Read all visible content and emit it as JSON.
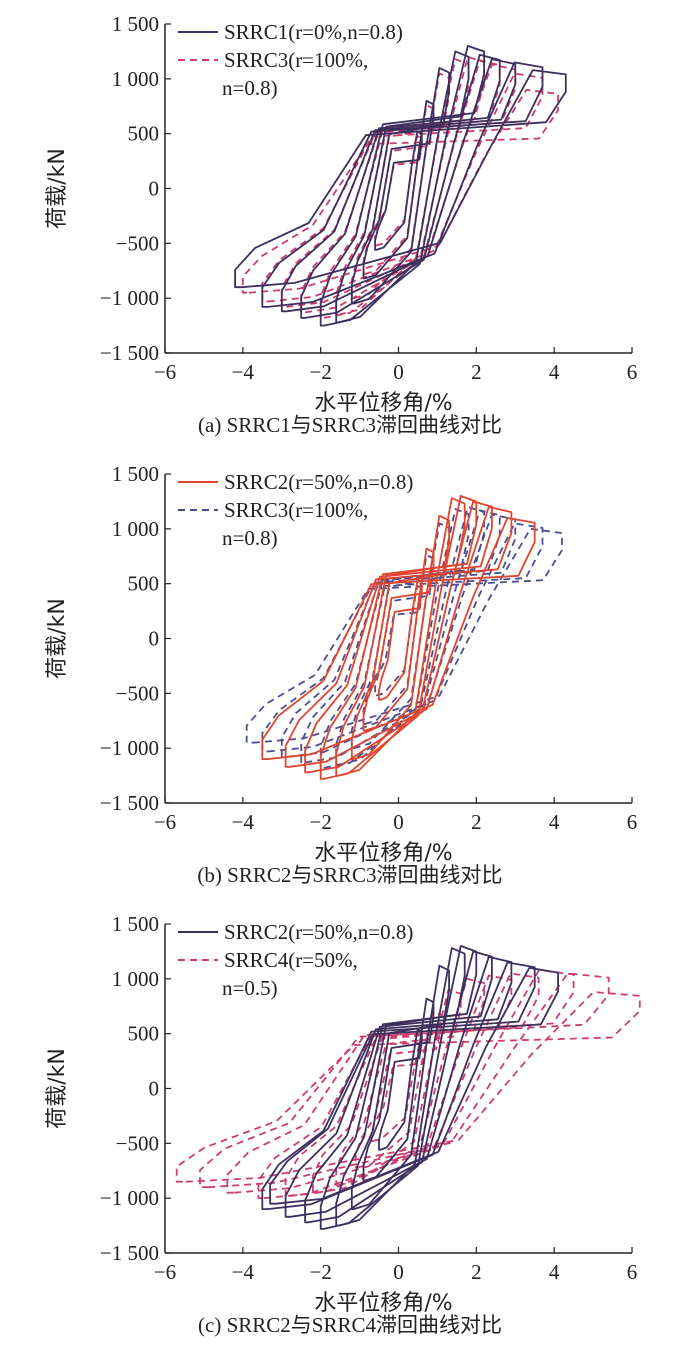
{
  "chart_data": [
    {
      "type": "line",
      "caption": "(a) SRRC1与SRRC3滞回曲线对比",
      "xlabel": "水平位移角/%",
      "ylabel": "荷载/kN",
      "xlim": [
        -6,
        6
      ],
      "ylim": [
        -1500,
        1500
      ],
      "xticks": [
        "−6",
        "−4",
        "−2",
        "0",
        "2",
        "4",
        "6"
      ],
      "yticks": [
        "1 500",
        "1 000",
        "500",
        "0",
        "−500",
        "−1 000",
        "−1 500"
      ],
      "series": [
        {
          "name": "SRRC1",
          "legend_lines": [
            "SRRC1(r=0%,n=0.8)"
          ],
          "color": "#3d2f5e",
          "dash": "solid",
          "loop_peaks": [
            {
              "pos": [
                0.6,
                520
              ],
              "neg": [
                -0.6,
                -560
              ]
            },
            {
              "pos": [
                0.9,
                800
              ],
              "neg": [
                -0.9,
                -820
              ]
            },
            {
              "pos": [
                1.3,
                1100
              ],
              "neg": [
                -1.2,
                -1050
              ]
            },
            {
              "pos": [
                1.8,
                1250
              ],
              "neg": [
                -1.6,
                -1220
              ]
            },
            {
              "pos": [
                2.2,
                1300
              ],
              "neg": [
                -2.0,
                -1250
              ]
            },
            {
              "pos": [
                2.6,
                1220
              ],
              "neg": [
                -2.5,
                -1180
              ]
            },
            {
              "pos": [
                3.0,
                1180
              ],
              "neg": [
                -3.0,
                -1120
              ]
            },
            {
              "pos": [
                3.7,
                1150
              ],
              "neg": [
                -3.5,
                -1080
              ]
            },
            {
              "pos": [
                4.3,
                1080
              ],
              "neg": [
                -4.2,
                -900
              ]
            }
          ]
        },
        {
          "name": "SRRC3",
          "legend_lines": [
            "SRRC3(r=100%,",
            "n=0.8)"
          ],
          "color": "#cc3d6e",
          "dash": "dashed",
          "loop_peaks": [
            {
              "pos": [
                0.6,
                480
              ],
              "neg": [
                -0.6,
                -520
              ]
            },
            {
              "pos": [
                0.9,
                760
              ],
              "neg": [
                -0.9,
                -780
              ]
            },
            {
              "pos": [
                1.3,
                1050
              ],
              "neg": [
                -1.2,
                -1000
              ]
            },
            {
              "pos": [
                1.8,
                1180
              ],
              "neg": [
                -1.6,
                -1150
              ]
            },
            {
              "pos": [
                2.2,
                1200
              ],
              "neg": [
                -2.0,
                -1180
              ]
            },
            {
              "pos": [
                2.6,
                1170
              ],
              "neg": [
                -2.5,
                -1130
              ]
            },
            {
              "pos": [
                3.0,
                1130
              ],
              "neg": [
                -3.0,
                -1080
              ]
            },
            {
              "pos": [
                3.7,
                1050
              ],
              "neg": [
                -3.5,
                -1030
              ]
            },
            {
              "pos": [
                4.1,
                900
              ],
              "neg": [
                -4.0,
                -950
              ]
            }
          ]
        }
      ]
    },
    {
      "type": "line",
      "caption": "(b) SRRC2与SRRC3滞回曲线对比",
      "xlabel": "水平位移角/%",
      "ylabel": "荷载/kN",
      "xlim": [
        -6,
        6
      ],
      "ylim": [
        -1500,
        1500
      ],
      "xticks": [
        "−6",
        "−4",
        "−2",
        "0",
        "2",
        "4",
        "6"
      ],
      "yticks": [
        "1 500",
        "1 000",
        "500",
        "0",
        "−500",
        "−1 000",
        "−1 500"
      ],
      "series": [
        {
          "name": "SRRC2",
          "legend_lines": [
            "SRRC2(r=50%,n=0.8)"
          ],
          "color": "#e0452f",
          "dash": "solid",
          "loop_peaks": [
            {
              "pos": [
                0.6,
                540
              ],
              "neg": [
                -0.5,
                -560
              ]
            },
            {
              "pos": [
                0.9,
                820
              ],
              "neg": [
                -0.9,
                -840
              ]
            },
            {
              "pos": [
                1.3,
                1120
              ],
              "neg": [
                -1.2,
                -1100
              ]
            },
            {
              "pos": [
                1.7,
                1280
              ],
              "neg": [
                -1.6,
                -1250
              ]
            },
            {
              "pos": [
                2.0,
                1300
              ],
              "neg": [
                -2.0,
                -1280
              ]
            },
            {
              "pos": [
                2.4,
                1250
              ],
              "neg": [
                -2.4,
                -1220
              ]
            },
            {
              "pos": [
                2.9,
                1200
              ],
              "neg": [
                -2.9,
                -1170
              ]
            },
            {
              "pos": [
                3.5,
                1100
              ],
              "neg": [
                -3.5,
                -1100
              ]
            }
          ]
        },
        {
          "name": "SRRC3",
          "legend_lines": [
            "SRRC3(r=100%,",
            "n=0.8)"
          ],
          "color": "#4b4f8e",
          "dash": "dashed",
          "loop_peaks": [
            {
              "pos": [
                0.6,
                480
              ],
              "neg": [
                -0.6,
                -520
              ]
            },
            {
              "pos": [
                0.9,
                760
              ],
              "neg": [
                -0.9,
                -780
              ]
            },
            {
              "pos": [
                1.3,
                1050
              ],
              "neg": [
                -1.2,
                -1000
              ]
            },
            {
              "pos": [
                1.8,
                1180
              ],
              "neg": [
                -1.6,
                -1150
              ]
            },
            {
              "pos": [
                2.2,
                1200
              ],
              "neg": [
                -2.0,
                -1180
              ]
            },
            {
              "pos": [
                2.6,
                1170
              ],
              "neg": [
                -2.5,
                -1130
              ]
            },
            {
              "pos": [
                3.0,
                1130
              ],
              "neg": [
                -3.0,
                -1080
              ]
            },
            {
              "pos": [
                3.7,
                1050
              ],
              "neg": [
                -3.5,
                -1030
              ]
            },
            {
              "pos": [
                4.2,
                1000
              ],
              "neg": [
                -3.9,
                -950
              ]
            }
          ]
        }
      ]
    },
    {
      "type": "line",
      "caption": "(c) SRRC2与SRRC4滞回曲线对比",
      "xlabel": "水平位移角/%",
      "ylabel": "荷载/kN",
      "xlim": [
        -6,
        6
      ],
      "ylim": [
        -1500,
        1500
      ],
      "xticks": [
        "−6",
        "−4",
        "−2",
        "0",
        "2",
        "4",
        "6"
      ],
      "yticks": [
        "1 500",
        "1 000",
        "500",
        "0",
        "−500",
        "−1 000",
        "−1 500"
      ],
      "series": [
        {
          "name": "SRRC2",
          "legend_lines": [
            "SRRC2(r=50%,n=0.8)"
          ],
          "color": "#3d2f5e",
          "dash": "solid",
          "loop_peaks": [
            {
              "pos": [
                0.6,
                540
              ],
              "neg": [
                -0.5,
                -560
              ]
            },
            {
              "pos": [
                0.9,
                820
              ],
              "neg": [
                -0.9,
                -840
              ]
            },
            {
              "pos": [
                1.3,
                1120
              ],
              "neg": [
                -1.2,
                -1100
              ]
            },
            {
              "pos": [
                1.7,
                1280
              ],
              "neg": [
                -1.6,
                -1250
              ]
            },
            {
              "pos": [
                2.0,
                1300
              ],
              "neg": [
                -2.0,
                -1280
              ]
            },
            {
              "pos": [
                2.4,
                1250
              ],
              "neg": [
                -2.4,
                -1220
              ]
            },
            {
              "pos": [
                2.9,
                1200
              ],
              "neg": [
                -2.9,
                -1170
              ]
            },
            {
              "pos": [
                3.5,
                1150
              ],
              "neg": [
                -3.5,
                -1100
              ]
            },
            {
              "pos": [
                4.1,
                1100
              ],
              "neg": [
                -3.3,
                -1050
              ]
            }
          ]
        },
        {
          "name": "SRRC4",
          "legend_lines": [
            "SRRC4(r=50%,",
            "n=0.5)"
          ],
          "color": "#cc3d6e",
          "dash": "dashed",
          "loop_peaks": [
            {
              "pos": [
                0.7,
                450
              ],
              "neg": [
                -0.7,
                -480
              ]
            },
            {
              "pos": [
                1.1,
                700
              ],
              "neg": [
                -1.1,
                -720
              ]
            },
            {
              "pos": [
                1.6,
                900
              ],
              "neg": [
                -1.6,
                -880
              ]
            },
            {
              "pos": [
                2.2,
                1000
              ],
              "neg": [
                -2.2,
                -950
              ]
            },
            {
              "pos": [
                2.9,
                1030
              ],
              "neg": [
                -2.9,
                -980
              ]
            },
            {
              "pos": [
                3.6,
                1050
              ],
              "neg": [
                -3.6,
                -1000
              ]
            },
            {
              "pos": [
                4.5,
                1080
              ],
              "neg": [
                -4.4,
                -950
              ]
            },
            {
              "pos": [
                5.4,
                1050
              ],
              "neg": [
                -5.1,
                -900
              ]
            },
            {
              "pos": [
                6.2,
                880
              ],
              "neg": [
                -5.7,
                -850
              ]
            }
          ]
        }
      ]
    }
  ]
}
